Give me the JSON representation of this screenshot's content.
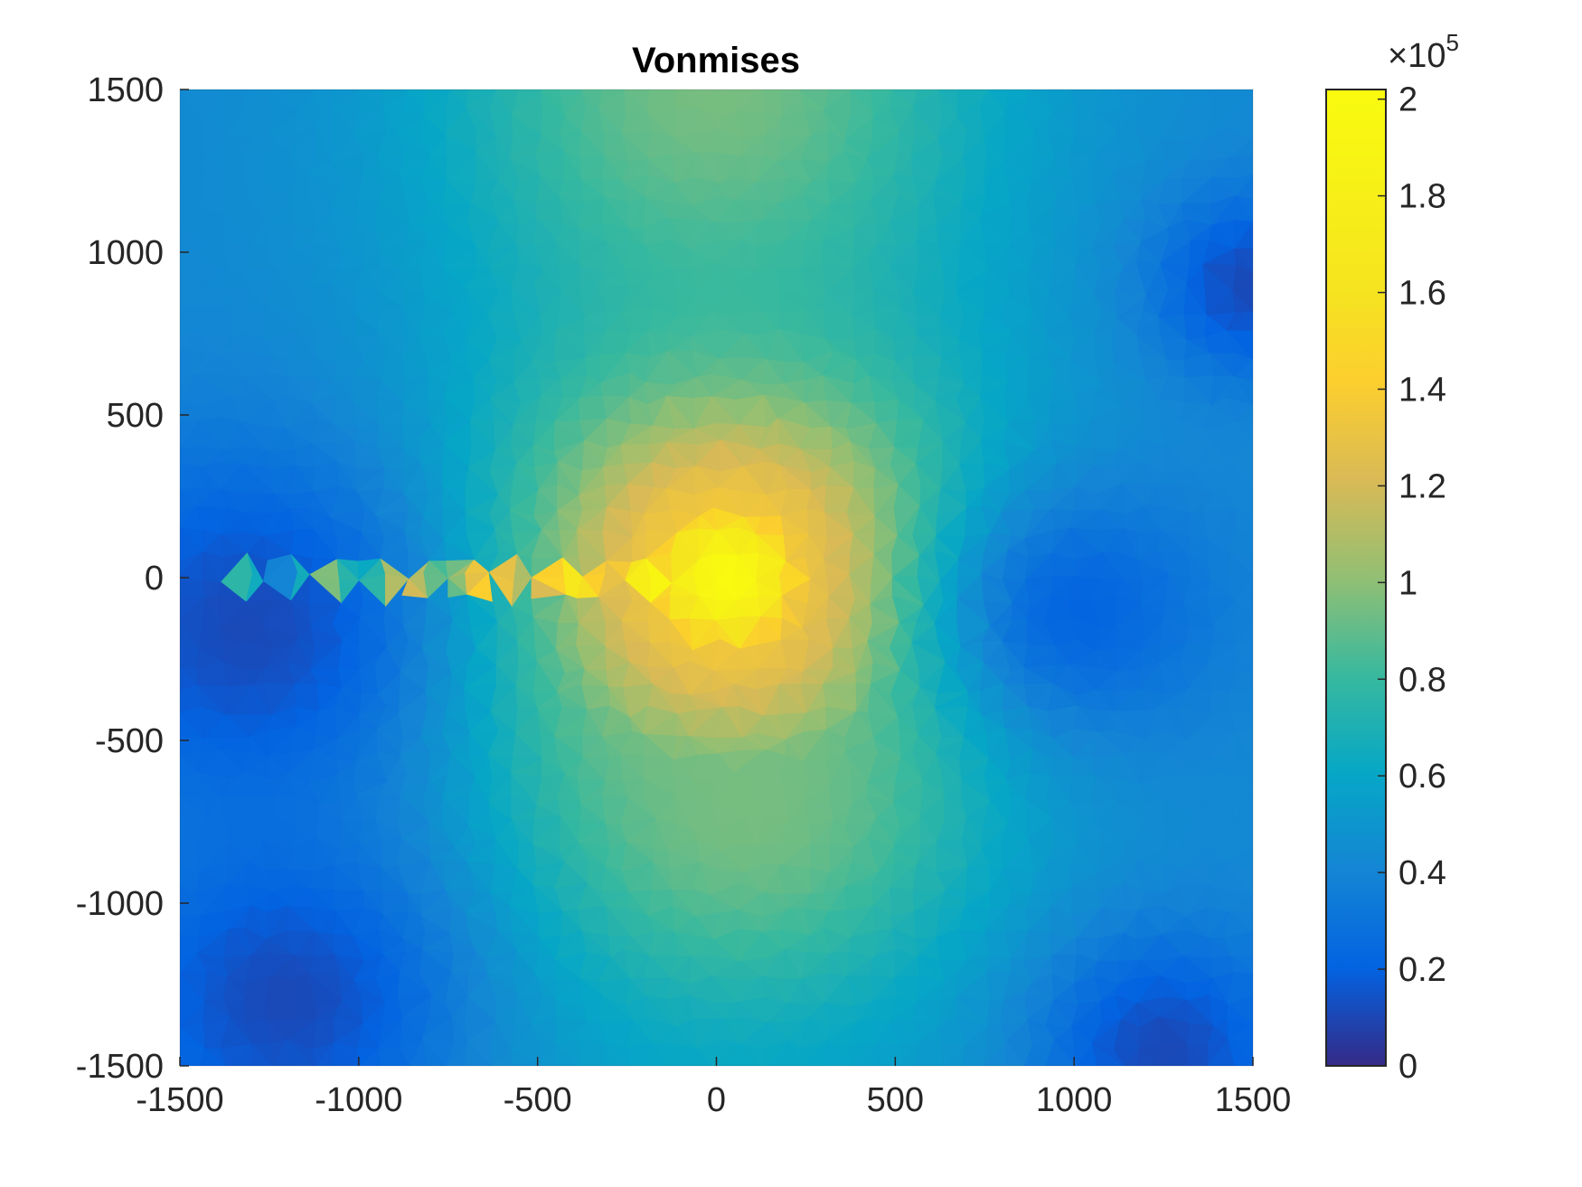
{
  "chart_data": {
    "type": "heatmap",
    "title": "Vonmises",
    "xlabel": "",
    "ylabel": "",
    "xlim": [
      -1500,
      1500
    ],
    "ylim": [
      -1500,
      1500
    ],
    "x_ticks": [
      -1500,
      -1000,
      -500,
      0,
      500,
      1000,
      1500
    ],
    "y_ticks": [
      -1500,
      -1000,
      -500,
      0,
      500,
      1000,
      1500
    ],
    "x_tick_labels": [
      "-1500",
      "-1000",
      "-500",
      "0",
      "500",
      "1000",
      "1500"
    ],
    "y_tick_labels": [
      "-1500",
      "-1000",
      "-500",
      "0",
      "500",
      "1000",
      "1500"
    ],
    "colorbar": {
      "clim": [
        0,
        2.02
      ],
      "scale_label_base": "×10",
      "scale_label_exponent": "5",
      "ticks": [
        0,
        0.2,
        0.4,
        0.6,
        0.8,
        1,
        1.2,
        1.4,
        1.6,
        1.8,
        2
      ],
      "tick_labels": [
        "0",
        "0.2",
        "0.4",
        "0.6",
        "0.8",
        "1",
        "1.2",
        "1.4",
        "1.6",
        "1.8",
        "2"
      ],
      "colormap": "parula"
    },
    "field_description": "Von Mises stress on a triangular mesh; peak (~2.0e5) near (0, 0) with a crack along y≈0 from x≈-1400 to x≈-100; lows near (-1300, -200), (1000, -100), (1250, -1450), (1500, 900)",
    "hot_spots": [
      {
        "x": 30,
        "y": 0,
        "value": 2.02,
        "radius": 200
      },
      {
        "x": 50,
        "y": 0,
        "value": 1.35,
        "radius": 480
      },
      {
        "x": 0,
        "y": 1500,
        "value": 0.95,
        "radius": 500
      },
      {
        "x": 80,
        "y": -700,
        "value": 0.95,
        "radius": 420
      }
    ],
    "cold_spots": [
      {
        "x": -1300,
        "y": -150,
        "value": 0.05,
        "radius": 400
      },
      {
        "x": -1200,
        "y": -1300,
        "value": 0.05,
        "radius": 350
      },
      {
        "x": 1000,
        "y": -100,
        "value": 0.15,
        "radius": 300
      },
      {
        "x": 1250,
        "y": -1450,
        "value": 0.05,
        "radius": 250
      },
      {
        "x": 1500,
        "y": 900,
        "value": 0.05,
        "radius": 200
      }
    ],
    "crack": {
      "y": 0,
      "x_start": -1400,
      "x_end": -80
    }
  }
}
